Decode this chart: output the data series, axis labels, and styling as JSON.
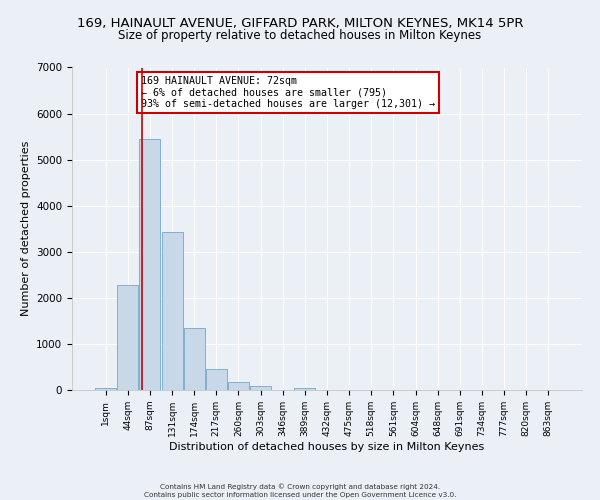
{
  "title": "169, HAINAULT AVENUE, GIFFARD PARK, MILTON KEYNES, MK14 5PR",
  "subtitle": "Size of property relative to detached houses in Milton Keynes",
  "xlabel": "Distribution of detached houses by size in Milton Keynes",
  "ylabel": "Number of detached properties",
  "bar_labels": [
    "1sqm",
    "44sqm",
    "87sqm",
    "131sqm",
    "174sqm",
    "217sqm",
    "260sqm",
    "303sqm",
    "346sqm",
    "389sqm",
    "432sqm",
    "475sqm",
    "518sqm",
    "561sqm",
    "604sqm",
    "648sqm",
    "691sqm",
    "734sqm",
    "777sqm",
    "820sqm",
    "863sqm"
  ],
  "bar_values": [
    50,
    2270,
    5450,
    3420,
    1350,
    450,
    165,
    80,
    0,
    50,
    0,
    0,
    0,
    0,
    0,
    0,
    0,
    0,
    0,
    0,
    0
  ],
  "bar_color": "#c8d8e8",
  "bar_edgecolor": "#7fb0d0",
  "ylim": [
    0,
    7000
  ],
  "yticks": [
    0,
    1000,
    2000,
    3000,
    4000,
    5000,
    6000,
    7000
  ],
  "bg_color": "#eaf0f6",
  "plot_bg": "#eaf0f6",
  "annotation_line1": "169 HAINAULT AVENUE: 72sqm",
  "annotation_line2": "← 6% of detached houses are smaller (795)",
  "annotation_line3": "93% of semi-detached houses are larger (12,301) →",
  "footer": "Contains HM Land Registry data © Crown copyright and database right 2024.\nContains public sector information licensed under the Open Government Licence v3.0.",
  "title_fontsize": 9.5,
  "subtitle_fontsize": 8.5,
  "red_line_index": 1.65
}
